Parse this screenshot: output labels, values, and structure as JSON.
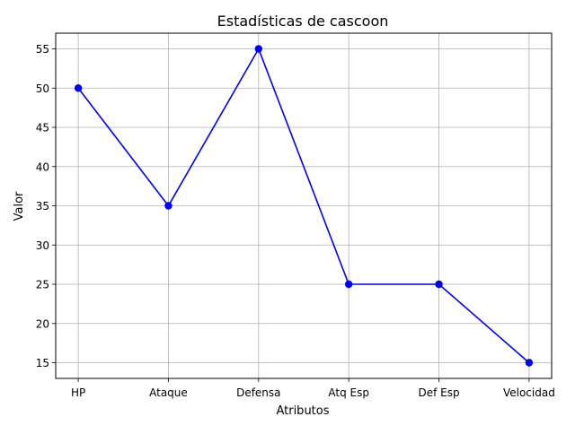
{
  "chart_data": {
    "type": "line",
    "title": "Estadísticas de cascoon",
    "xlabel": "Atributos",
    "ylabel": "Valor",
    "categories": [
      "HP",
      "Ataque",
      "Defensa",
      "Atq Esp",
      "Def Esp",
      "Velocidad"
    ],
    "series": [
      {
        "values": [
          50,
          35,
          55,
          25,
          25,
          15
        ],
        "color": "#0000ff",
        "marker": "circle"
      }
    ],
    "ylim": [
      13,
      57
    ],
    "yticks": [
      15,
      20,
      25,
      30,
      35,
      40,
      45,
      50,
      55
    ],
    "grid": true,
    "legend": "none"
  }
}
